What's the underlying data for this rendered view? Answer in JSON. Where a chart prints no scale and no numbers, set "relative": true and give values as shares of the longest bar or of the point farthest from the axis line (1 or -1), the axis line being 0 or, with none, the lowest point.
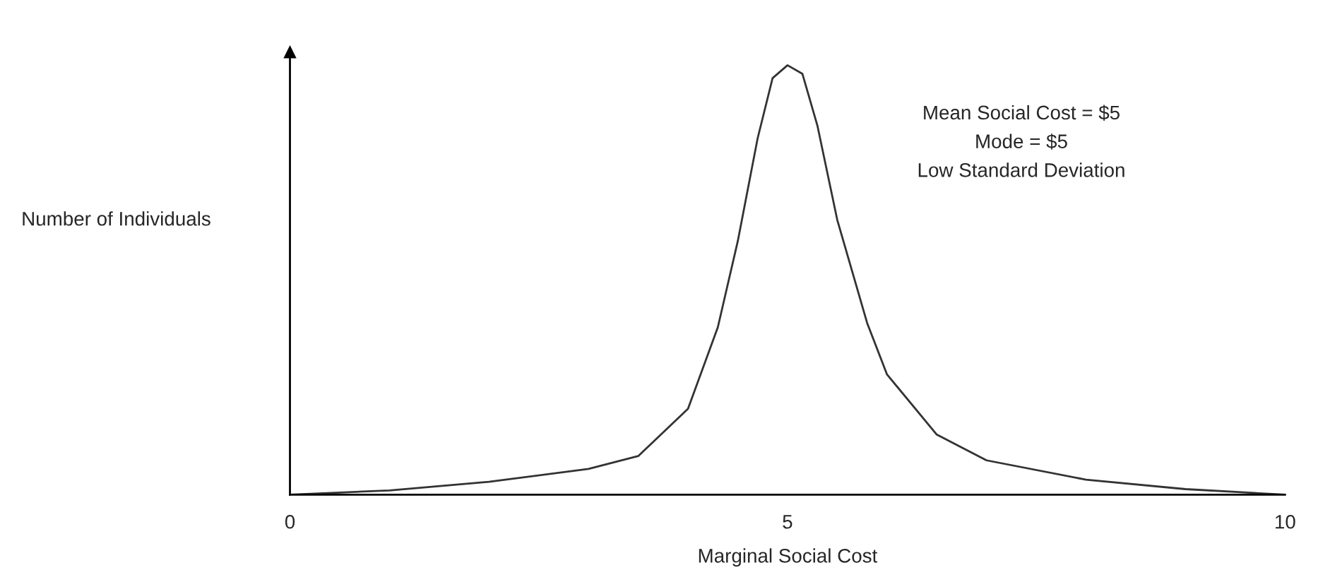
{
  "chart_data": {
    "type": "line",
    "relative": true,
    "xlabel": "Marginal Social Cost",
    "ylabel": "Number of Individuals",
    "x": [
      0,
      1,
      2,
      3,
      3.5,
      4,
      4.3,
      4.5,
      4.7,
      4.85,
      5,
      5.15,
      5.3,
      5.5,
      5.8,
      6,
      6.5,
      7,
      8,
      9,
      10
    ],
    "series": [
      {
        "color": "#333333",
        "values": [
          0,
          0.01,
          0.03,
          0.06,
          0.09,
          0.2,
          0.39,
          0.59,
          0.83,
          0.97,
          1.0,
          0.98,
          0.86,
          0.64,
          0.4,
          0.28,
          0.14,
          0.08,
          0.035,
          0.013,
          0
        ]
      }
    ],
    "xlim": [
      0,
      10
    ],
    "xticks": [
      0,
      5,
      10
    ],
    "annotations": [
      "Mean Social Cost = $5",
      "Mode = $5",
      "Low Standard Deviation"
    ],
    "grid": false,
    "legend": false,
    "marker": "none",
    "line_style": "solid"
  }
}
